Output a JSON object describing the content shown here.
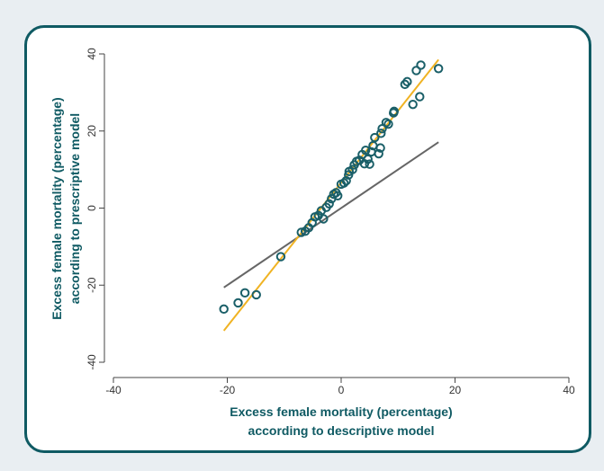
{
  "chart_data": {
    "type": "scatter",
    "xlabel_lines": [
      "Excess female mortality (percentage)",
      "according to descriptive model"
    ],
    "ylabel_lines": [
      "Excess female mortality (percentage)",
      "according to prescriptive model"
    ],
    "xlim": [
      -40,
      40
    ],
    "ylim": [
      -40,
      40
    ],
    "xticks": [
      -40,
      -20,
      0,
      20,
      40
    ],
    "yticks": [
      -40,
      -20,
      0,
      20,
      40
    ],
    "grid": false,
    "points": [
      [
        -20.6,
        -26.2
      ],
      [
        -18.1,
        -24.6
      ],
      [
        -16.9,
        -22.0
      ],
      [
        -14.9,
        -22.5
      ],
      [
        -10.6,
        -12.6
      ],
      [
        -7.0,
        -6.3
      ],
      [
        -6.3,
        -6.0
      ],
      [
        -5.7,
        -5.1
      ],
      [
        -5.1,
        -3.8
      ],
      [
        -4.6,
        -2.3
      ],
      [
        -4.0,
        -1.9
      ],
      [
        -3.5,
        -0.7
      ],
      [
        -3.1,
        -2.8
      ],
      [
        -2.6,
        0.2
      ],
      [
        -2.1,
        1.1
      ],
      [
        -1.7,
        2.4
      ],
      [
        -1.3,
        3.6
      ],
      [
        -0.9,
        4.0
      ],
      [
        -0.6,
        3.2
      ],
      [
        0.0,
        6.2
      ],
      [
        0.5,
        6.5
      ],
      [
        0.9,
        7.1
      ],
      [
        1.3,
        8.6
      ],
      [
        1.4,
        9.5
      ],
      [
        2.0,
        10.0
      ],
      [
        2.3,
        11.2
      ],
      [
        2.7,
        12.1
      ],
      [
        3.2,
        12.4
      ],
      [
        3.7,
        13.9
      ],
      [
        4.1,
        11.5
      ],
      [
        4.3,
        15.0
      ],
      [
        4.7,
        12.7
      ],
      [
        5.0,
        11.4
      ],
      [
        5.3,
        14.6
      ],
      [
        5.6,
        16.2
      ],
      [
        5.9,
        18.3
      ],
      [
        6.6,
        14.1
      ],
      [
        6.9,
        15.6
      ],
      [
        7.0,
        19.4
      ],
      [
        7.2,
        20.6
      ],
      [
        7.9,
        22.2
      ],
      [
        8.3,
        21.8
      ],
      [
        9.2,
        24.7
      ],
      [
        9.3,
        25.1
      ],
      [
        11.2,
        32.1
      ],
      [
        11.6,
        32.8
      ],
      [
        12.6,
        26.9
      ],
      [
        13.2,
        35.7
      ],
      [
        13.8,
        28.9
      ],
      [
        14.0,
        37.1
      ],
      [
        17.1,
        36.2
      ]
    ],
    "series": [
      {
        "type": "line",
        "color": "#666666",
        "x": [
          -20.6,
          17.1
        ],
        "y": [
          -20.6,
          17.1
        ]
      },
      {
        "type": "line",
        "color": "#f0b323",
        "x": [
          -20.6,
          17.1
        ],
        "y": [
          -31.8,
          38.5
        ]
      }
    ],
    "marker_color": "#1a5f68"
  }
}
